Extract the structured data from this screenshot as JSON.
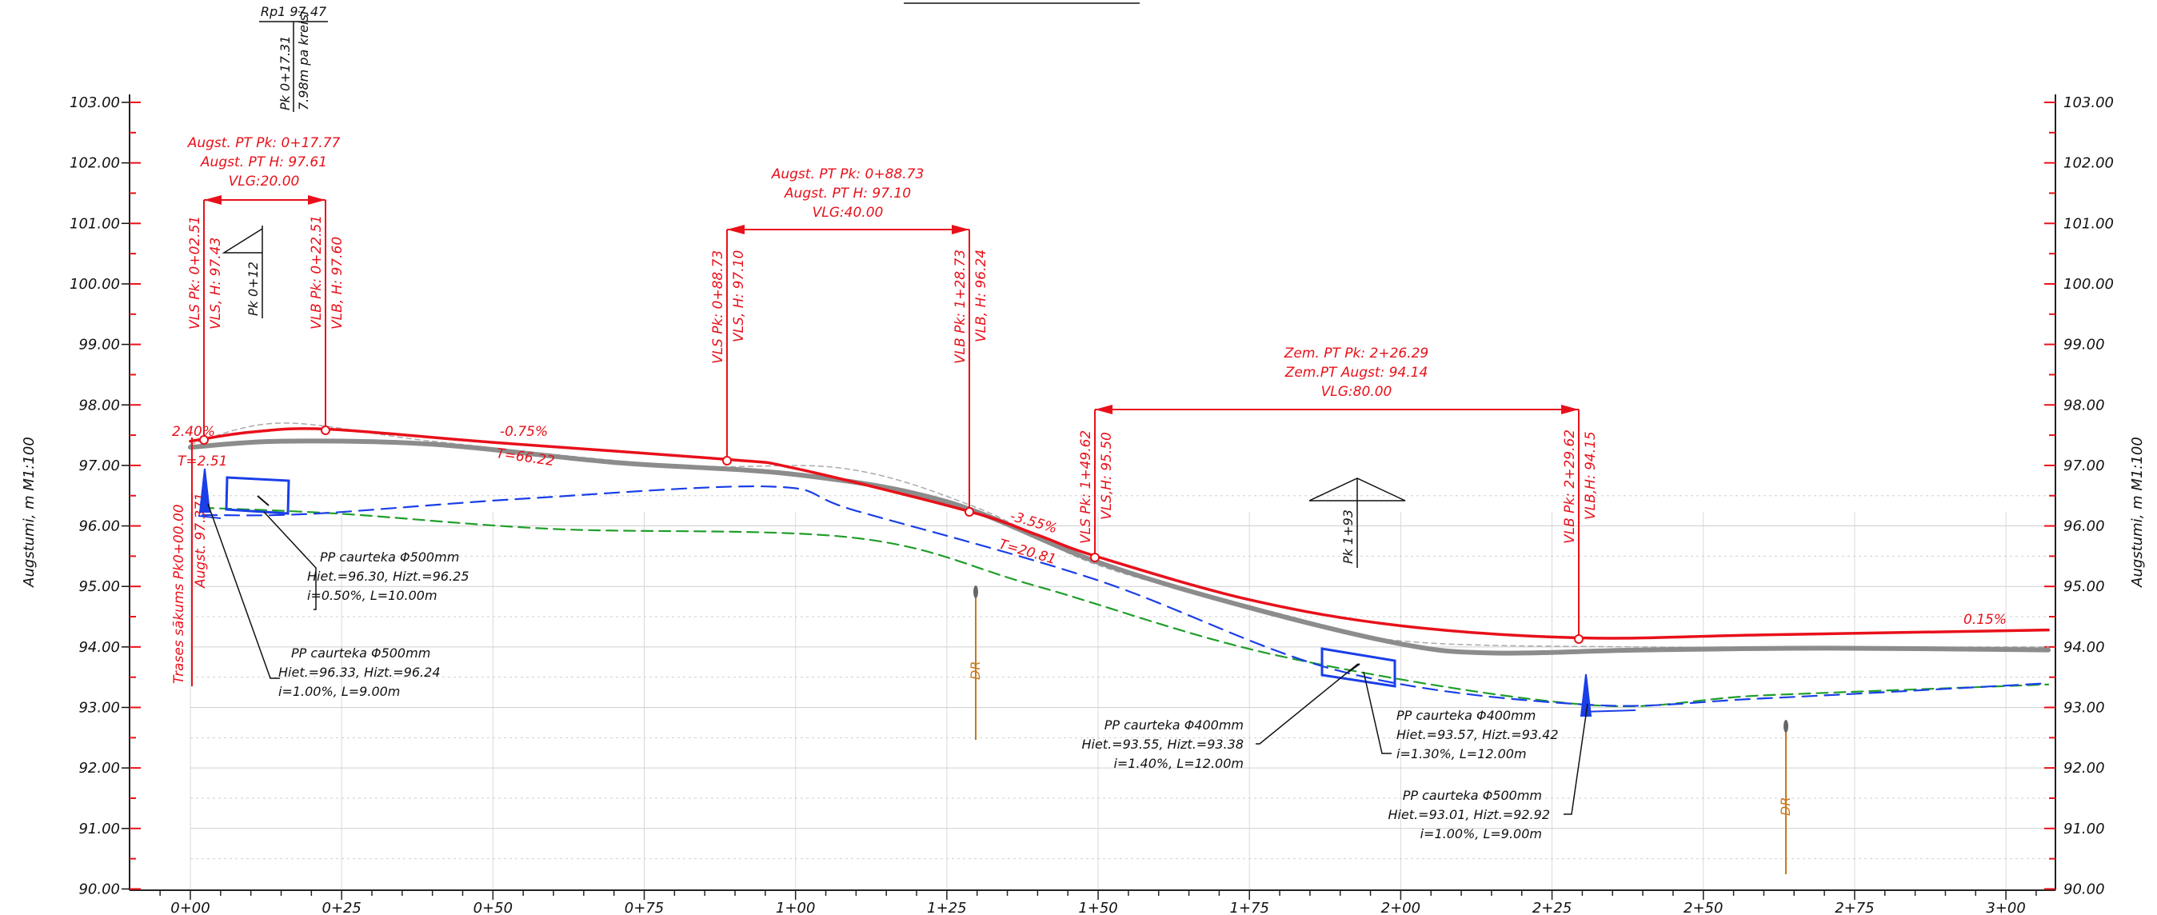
{
  "chart_data": {
    "type": "line",
    "y_axis_title": "Augstumi, m M1:100",
    "y_ticks": [
      "103.00",
      "102.00",
      "101.00",
      "100.00",
      "99.00",
      "98.00",
      "97.00",
      "96.00",
      "95.00",
      "94.00",
      "93.00",
      "92.00",
      "91.00",
      "90.00"
    ],
    "x_ticks": [
      "0+00",
      "0+25",
      "0+50",
      "0+75",
      "1+00",
      "1+25",
      "1+50",
      "1+75",
      "2+00",
      "2+25",
      "2+50",
      "2+75",
      "3+00"
    ],
    "ylim": [
      90,
      103.5
    ],
    "xlim": [
      -10,
      310
    ],
    "series": [
      {
        "key": "design",
        "color": "#e8101a",
        "points": [
          [
            0,
            97.4
          ],
          [
            10,
            97.55
          ],
          [
            22.5,
            97.6
          ],
          [
            50,
            97.38
          ],
          [
            88.7,
            97.1
          ],
          [
            100,
            96.95
          ],
          [
            128.7,
            96.24
          ],
          [
            140,
            95.85
          ],
          [
            149.6,
            95.5
          ],
          [
            175,
            94.78
          ],
          [
            200,
            94.35
          ],
          [
            229.6,
            94.15
          ],
          [
            260,
            94.2
          ],
          [
            307,
            94.28
          ]
        ]
      },
      {
        "key": "ground",
        "color": "#8c8c8c",
        "points": [
          [
            0,
            97.3
          ],
          [
            15,
            97.4
          ],
          [
            40,
            97.35
          ],
          [
            70,
            97.05
          ],
          [
            100,
            96.85
          ],
          [
            125,
            96.4
          ],
          [
            150,
            95.4
          ],
          [
            175,
            94.65
          ],
          [
            200,
            94.05
          ],
          [
            215,
            93.9
          ],
          [
            240,
            93.95
          ],
          [
            270,
            93.98
          ],
          [
            307,
            93.95
          ]
        ]
      },
      {
        "key": "ground_ref",
        "color": "#aaaaaa",
        "points": [
          [
            0,
            97.35
          ],
          [
            15,
            97.7
          ],
          [
            40,
            97.4
          ],
          [
            80,
            97.0
          ],
          [
            108,
            96.95
          ],
          [
            130,
            96.3
          ],
          [
            150,
            95.35
          ],
          [
            180,
            94.55
          ],
          [
            200,
            94.1
          ],
          [
            240,
            94.0
          ],
          [
            307,
            94.0
          ]
        ]
      },
      {
        "key": "blue_line",
        "color": "#1a3ee8",
        "points": [
          [
            2,
            96.18
          ],
          [
            20,
            96.2
          ],
          [
            55,
            96.45
          ],
          [
            96,
            96.65
          ],
          [
            110,
            96.25
          ],
          [
            150,
            95.1
          ],
          [
            190,
            93.6
          ],
          [
            230,
            93.05
          ],
          [
            260,
            93.15
          ],
          [
            307,
            93.4
          ]
        ]
      },
      {
        "key": "green_line",
        "color": "#1f9e2a",
        "points": [
          [
            2,
            96.3
          ],
          [
            25,
            96.2
          ],
          [
            60,
            95.95
          ],
          [
            110,
            95.8
          ],
          [
            140,
            95.0
          ],
          [
            180,
            93.85
          ],
          [
            230,
            93.05
          ],
          [
            260,
            93.2
          ],
          [
            307,
            93.38
          ]
        ]
      }
    ]
  },
  "labels": {
    "rp": "Rp1 97.47",
    "pk_rp_1": "Pk 0+17.31",
    "pk_rp_2": "7.98m pa kreisi",
    "vlg1_1": "Augst. PT Pk: 0+17.77",
    "vlg1_2": "Augst. PT H: 97.61",
    "vlg1_3": "VLG:20.00",
    "vls1_a": "VLS Pk: 0+02.51",
    "vls1_b": "VLS, H: 97.43",
    "vlb1_a": "VLB Pk: 0+22.51",
    "vlb1_b": "VLB, H: 97.60",
    "pk_012": "Pk 0+12",
    "vlg2_1": "Augst. PT Pk: 0+88.73",
    "vlg2_2": "Augst. PT H: 97.10",
    "vlg2_3": "VLG:40.00",
    "vls2_a": "VLS Pk: 0+88.73",
    "vls2_b": "VLS, H: 97.10",
    "vlb2_a": "VLB Pk: 1+28.73",
    "vlb2_b": "VLB, H: 96.24",
    "vlg3_1": "Zem. PT Pk: 2+26.29",
    "vlg3_2": "Zem.PT Augst: 94.14",
    "vlg3_3": "VLG:80.00",
    "vls3_a": "VLS Pk: 1+49.62",
    "vls3_b": "VLS,H: 95.50",
    "vlb3_a": "VLB Pk: 2+29.62",
    "vlb3_b": "VLB,H: 94.15",
    "pk_193": "Pk 1+93",
    "slope1": "2.40%",
    "t1": "T=2.51",
    "slope2": "-0.75%",
    "t2": "T=66.22",
    "slope3": "-3.55%",
    "t3": "T=20.81",
    "slope4": "0.15%",
    "start_1": "Trases sākums Pk0+00.00",
    "start_2": "Augst. 97.371",
    "c1_1": "PP caurteka Φ500mm",
    "c1_2": "Hiet.=96.30, Hizt.=96.25",
    "c1_3": "i=0.50%, L=10.00m",
    "c2_1": "PP caurteka Φ500mm",
    "c2_2": "Hiet.=96.33, Hizt.=96.24",
    "c2_3": "i=1.00%, L=9.00m",
    "c3_1": "PP caurteka Φ400mm",
    "c3_2": "Hiet.=93.55, Hizt.=93.38",
    "c3_3": "i=1.40%, L=12.00m",
    "c4_1": "PP caurteka Φ400mm",
    "c4_2": "Hiet.=93.57, Hizt.=93.42",
    "c4_3": "i=1.30%, L=12.00m",
    "c5_1": "PP caurteka Φ500mm",
    "c5_2": "Hiet.=93.01, Hizt.=92.92",
    "c5_3": "i=1.00%, L=9.00m",
    "dr": "DR"
  }
}
